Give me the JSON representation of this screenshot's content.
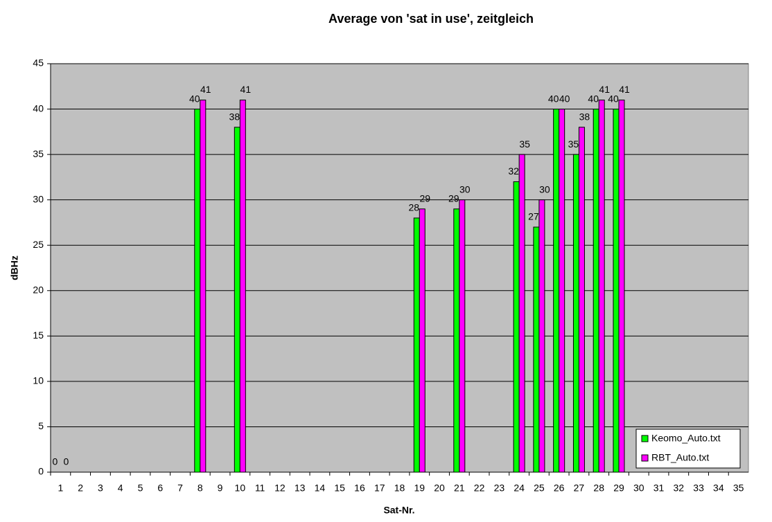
{
  "chart_data": {
    "type": "bar",
    "title": "Average von 'sat in use', zeitgleich",
    "x_label": "Sat-Nr.",
    "y_label": "dBHz",
    "categories": [
      1,
      2,
      3,
      4,
      5,
      6,
      7,
      8,
      9,
      10,
      11,
      12,
      13,
      14,
      15,
      16,
      17,
      18,
      19,
      20,
      21,
      22,
      23,
      24,
      25,
      26,
      27,
      28,
      29,
      30,
      31,
      32,
      33,
      34,
      35
    ],
    "series": [
      {
        "name": "Keomo_Auto.txt",
        "color": "#00ff00",
        "values": [
          0,
          null,
          null,
          null,
          null,
          null,
          null,
          40,
          null,
          38,
          null,
          null,
          null,
          null,
          null,
          null,
          null,
          null,
          28,
          null,
          29,
          null,
          null,
          32,
          27,
          40,
          35,
          40,
          40,
          null,
          null,
          null,
          null,
          null,
          null
        ]
      },
      {
        "name": "RBT_Auto.txt",
        "color": "#ff00ff",
        "values": [
          0,
          null,
          null,
          null,
          null,
          null,
          null,
          41,
          null,
          41,
          null,
          null,
          null,
          null,
          null,
          null,
          null,
          null,
          29,
          null,
          30,
          null,
          null,
          35,
          30,
          40,
          38,
          41,
          41,
          null,
          null,
          null,
          null,
          null,
          null
        ]
      }
    ],
    "ylim": [
      0,
      45
    ],
    "yticks": [
      0,
      5,
      10,
      15,
      20,
      25,
      30,
      35,
      40,
      45
    ],
    "grid": true,
    "legend": "lower right",
    "plot_background": "#c0c0c0"
  }
}
